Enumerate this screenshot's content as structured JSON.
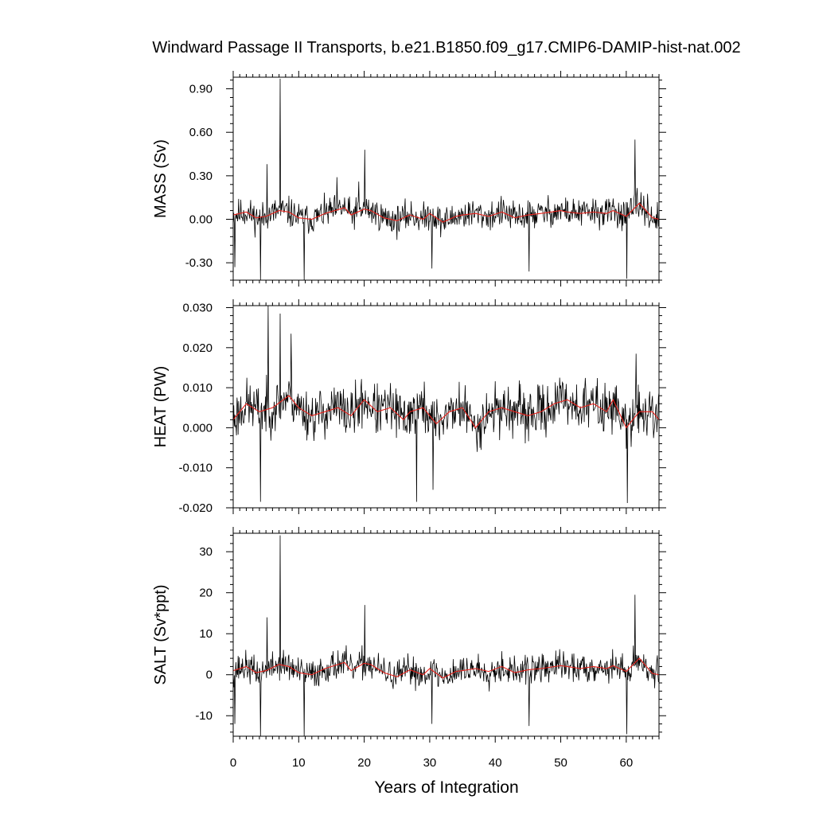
{
  "title": "Windward Passage II Transports, b.e21.B1850.f09_g17.CMIP6-DAMIP-hist-nat.002",
  "xlabel": "Years of Integration",
  "colors": {
    "raw": "#000000",
    "smooth": "#e8211b",
    "axis": "#000000",
    "background": "#ffffff"
  },
  "chart_data": [
    {
      "type": "line",
      "panel": "mass",
      "ylabel": "MASS (Sv)",
      "xlim": [
        0,
        65
      ],
      "ylim": [
        -0.42,
        0.98
      ],
      "xticks": [
        0,
        10,
        20,
        30,
        40,
        50,
        60
      ],
      "xtick_labels": [
        "0",
        "10",
        "20",
        "30",
        "40",
        "50",
        "60"
      ],
      "yticks": [
        -0.3,
        0.0,
        0.3,
        0.6,
        0.9
      ],
      "ytick_labels": [
        "-0.30",
        "0.00",
        "0.30",
        "0.60",
        "0.90"
      ],
      "noise_amplitude": 0.09,
      "seed": 11,
      "smooth": {
        "x": [
          0,
          2,
          3.5,
          5,
          7,
          8.5,
          10,
          12,
          14,
          17,
          18,
          20,
          21,
          23,
          25,
          27,
          29,
          30,
          32,
          34,
          35,
          37,
          39,
          41,
          43,
          45,
          47,
          50,
          51,
          53,
          55,
          57,
          58,
          60,
          62,
          64,
          65
        ],
        "y": [
          0.03,
          0.05,
          0.01,
          0.02,
          0.06,
          0.05,
          0.01,
          0.0,
          0.04,
          0.08,
          0.03,
          0.07,
          0.06,
          0.01,
          -0.01,
          0.03,
          0.0,
          0.04,
          -0.02,
          0.02,
          0.03,
          0.04,
          0.02,
          0.05,
          0.01,
          0.03,
          0.04,
          0.06,
          0.05,
          0.04,
          0.05,
          0.04,
          0.06,
          0.02,
          0.11,
          0.01,
          0.0
        ]
      },
      "spikes": [
        {
          "x": 0.25,
          "y": -0.33
        },
        {
          "x": 4.2,
          "y": -0.42
        },
        {
          "x": 5.2,
          "y": 0.38
        },
        {
          "x": 7.2,
          "y": 0.97
        },
        {
          "x": 10.8,
          "y": -0.42
        },
        {
          "x": 15.8,
          "y": 0.29
        },
        {
          "x": 19.2,
          "y": 0.26
        },
        {
          "x": 20.1,
          "y": 0.48
        },
        {
          "x": 30.3,
          "y": -0.34
        },
        {
          "x": 45.2,
          "y": -0.36
        },
        {
          "x": 60.1,
          "y": -0.41
        },
        {
          "x": 61.3,
          "y": 0.55
        }
      ]
    },
    {
      "type": "line",
      "panel": "heat",
      "ylabel": "HEAT (PW)",
      "xlim": [
        0,
        65
      ],
      "ylim": [
        -0.02,
        0.0305
      ],
      "xticks": [
        0,
        10,
        20,
        30,
        40,
        50,
        60
      ],
      "xtick_labels": [
        "0",
        "10",
        "20",
        "30",
        "40",
        "50",
        "60"
      ],
      "yticks": [
        -0.02,
        -0.01,
        0.0,
        0.01,
        0.02,
        0.03
      ],
      "ytick_labels": [
        "-0.020",
        "-0.010",
        "0.000",
        "0.010",
        "0.020",
        "0.030"
      ],
      "noise_amplitude": 0.0055,
      "seed": 23,
      "smooth": {
        "x": [
          0,
          2,
          4,
          6,
          8.5,
          10,
          12,
          14,
          16,
          18,
          20,
          22,
          24,
          26,
          27,
          29,
          31,
          33,
          35,
          37,
          39,
          41,
          43,
          45,
          47,
          49,
          51,
          53,
          55,
          57,
          58,
          60,
          62,
          64,
          65
        ],
        "y": [
          0.002,
          0.006,
          0.004,
          0.005,
          0.008,
          0.005,
          0.003,
          0.004,
          0.005,
          0.003,
          0.007,
          0.004,
          0.005,
          0.002,
          0.004,
          0.005,
          0.001,
          0.004,
          0.005,
          0.0,
          0.004,
          0.005,
          0.004,
          0.003,
          0.004,
          0.006,
          0.007,
          0.005,
          0.006,
          0.004,
          0.007,
          0.0,
          0.004,
          0.004,
          0.002
        ]
      },
      "spikes": [
        {
          "x": 4.2,
          "y": -0.0185
        },
        {
          "x": 5.3,
          "y": 0.0305
        },
        {
          "x": 7.2,
          "y": 0.0285
        },
        {
          "x": 8.8,
          "y": 0.0235
        },
        {
          "x": 28.0,
          "y": -0.0185
        },
        {
          "x": 30.5,
          "y": -0.0155
        },
        {
          "x": 60.2,
          "y": -0.0188
        },
        {
          "x": 61.5,
          "y": 0.0185
        }
      ]
    },
    {
      "type": "line",
      "panel": "salt",
      "ylabel": "SALT (Sv*ppt)",
      "xlim": [
        0,
        65
      ],
      "ylim": [
        -15,
        34.5
      ],
      "xticks": [
        0,
        10,
        20,
        30,
        40,
        50,
        60
      ],
      "xtick_labels": [
        "0",
        "10",
        "20",
        "30",
        "40",
        "50",
        "60"
      ],
      "yticks": [
        -10,
        0,
        10,
        20,
        30
      ],
      "ytick_labels": [
        "-10",
        "0",
        "10",
        "20",
        "30"
      ],
      "noise_amplitude": 3.2,
      "seed": 37,
      "smooth": {
        "x": [
          0,
          2,
          3.5,
          5,
          7,
          8.5,
          10,
          12,
          14,
          17,
          18,
          20,
          21,
          23,
          25,
          27,
          29,
          30,
          32,
          34,
          35,
          37,
          39,
          41,
          43,
          45,
          47,
          50,
          51,
          53,
          55,
          57,
          58,
          60,
          62,
          64,
          65
        ],
        "y": [
          1.0,
          2.0,
          0.5,
          1.0,
          2.5,
          2.0,
          0.5,
          0.0,
          1.5,
          3.0,
          1.0,
          2.8,
          2.5,
          0.5,
          -0.5,
          1.2,
          0.0,
          1.5,
          -0.8,
          0.8,
          1.0,
          1.5,
          0.8,
          2.0,
          0.5,
          1.2,
          1.5,
          2.2,
          2.0,
          1.5,
          2.0,
          1.5,
          2.2,
          0.8,
          4.0,
          0.3,
          0.0
        ]
      },
      "spikes": [
        {
          "x": 0.25,
          "y": -12
        },
        {
          "x": 4.2,
          "y": -15
        },
        {
          "x": 5.2,
          "y": 14
        },
        {
          "x": 7.2,
          "y": 34
        },
        {
          "x": 10.8,
          "y": -15
        },
        {
          "x": 20.1,
          "y": 17
        },
        {
          "x": 30.3,
          "y": -12
        },
        {
          "x": 45.2,
          "y": -12.5
        },
        {
          "x": 60.1,
          "y": -14.5
        },
        {
          "x": 61.3,
          "y": 19.5
        }
      ]
    }
  ]
}
